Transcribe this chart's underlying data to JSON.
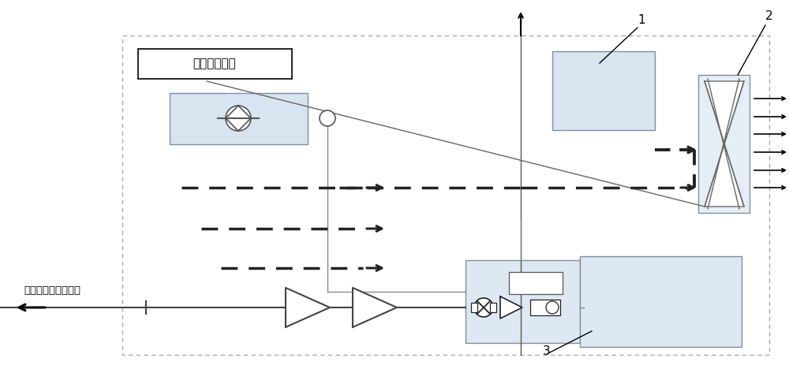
{
  "bg_color": "#ffffff",
  "box_fill": "#d8e4f0",
  "box_edge": "#8090a0",
  "dash_color": "#222222",
  "line_color": "#888888",
  "chinese_label": "车载储氢系统",
  "chinese_fuel": "进入燃料电池发动机"
}
